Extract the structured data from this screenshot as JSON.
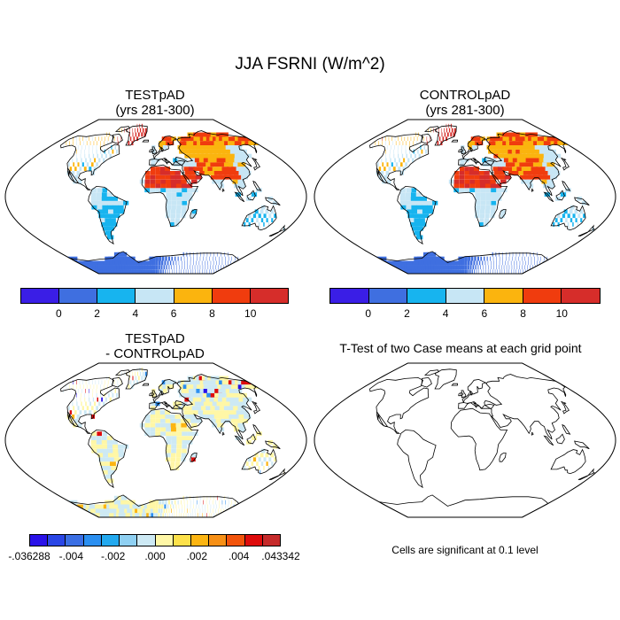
{
  "main_title": "JJA FSRNI (W/m^2)",
  "panels": {
    "test": {
      "title_line1": "TESTpAD",
      "title_line2": "(yrs 281-300)"
    },
    "control": {
      "title_line1": "CONTROLpAD",
      "title_line2": "(yrs 281-300)"
    },
    "diff": {
      "title_line1": "TESTpAD",
      "title_line2": "- CONTROLpAD"
    },
    "ttest": {
      "title": "T-Test of two Case means at each grid point",
      "note": "Cells are significant at 0.1 level"
    }
  },
  "colorbar_top": {
    "colors": [
      "#3a1ee6",
      "#3f6fe0",
      "#17b4ef",
      "#c7e6f5",
      "#fbb40e",
      "#f03c0e",
      "#d62d2a"
    ],
    "ticks": [
      "0",
      "2",
      "4",
      "6",
      "8",
      "10"
    ]
  },
  "colorbar_diff": {
    "colors": [
      "#2a12e8",
      "#2a46e6",
      "#3b6fe4",
      "#2b8ff0",
      "#23a9ef",
      "#8fd0f2",
      "#cde9f4",
      "#fff7a6",
      "#fde14a",
      "#fcb512",
      "#f79016",
      "#f2540c",
      "#de0c0c",
      "#c62b2b"
    ],
    "ticks": [
      ".036288",
      ".004",
      ".002",
      ".000",
      ".002",
      ".004",
      ".043342"
    ],
    "tick_prefixes": [
      "-",
      "-",
      "-",
      "",
      "",
      "",
      ""
    ]
  }
}
